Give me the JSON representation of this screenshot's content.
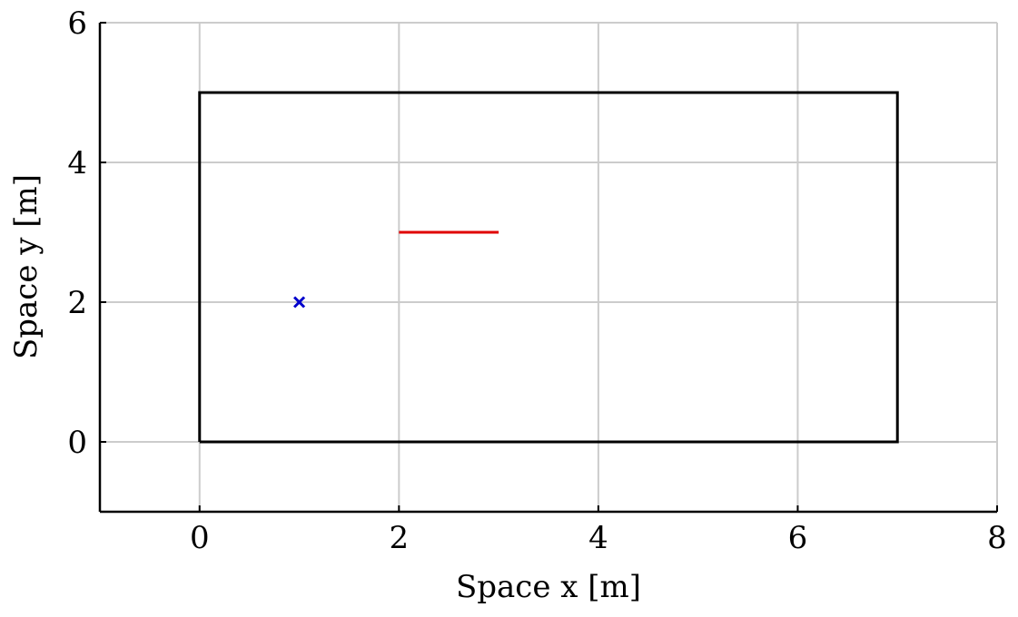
{
  "chart_data": {
    "type": "line",
    "title": "",
    "xlabel": "Space x [m]",
    "ylabel": "Space y [m]",
    "xlim": [
      -1,
      8
    ],
    "ylim": [
      -1,
      6
    ],
    "x_ticks": [
      0,
      2,
      4,
      6,
      8
    ],
    "y_ticks": [
      0,
      2,
      4,
      6
    ],
    "grid": true,
    "colors": {
      "grid": "#cccccc",
      "axes": "#000000",
      "boundary": "#000000",
      "segment": "#e00000",
      "marker": "#0000cc"
    },
    "series": [
      {
        "type": "line",
        "x": [
          0,
          7,
          7,
          0,
          0
        ],
        "y": [
          0,
          0,
          5,
          5,
          0
        ],
        "color": "#000000"
      },
      {
        "type": "line",
        "x": [
          2,
          3
        ],
        "y": [
          3,
          3
        ],
        "color": "#e00000"
      },
      {
        "type": "scatter",
        "marker": "x",
        "x": [
          1
        ],
        "y": [
          2
        ],
        "color": "#0000cc"
      }
    ]
  }
}
